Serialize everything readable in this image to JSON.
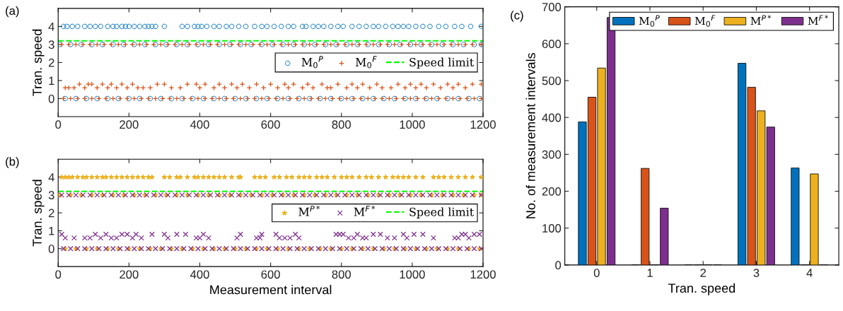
{
  "chart_data": [
    {
      "type": "scatter",
      "ylabel": "Tran. speed",
      "annotations": [
        "(a)"
      ],
      "xlim": [
        0,
        1200
      ],
      "xticks": [
        0,
        200,
        400,
        600,
        800,
        1000,
        1200
      ],
      "ylim": [
        -1,
        5
      ],
      "yticks": [
        0,
        1,
        2,
        3,
        4
      ],
      "grid": false,
      "legend": "right",
      "ref_lines": [
        {
          "axis": "y",
          "value": 3.2,
          "label": "Speed limit",
          "color": "#00ff00",
          "line_style": "dashed"
        }
      ],
      "series": [
        {
          "name": "M$_{0}$$^{P}$",
          "color": "#0072bd",
          "marker": "circle",
          "x": [
            15,
            25,
            40,
            55,
            75,
            90,
            105,
            120,
            140,
            155,
            165,
            180,
            190,
            200,
            215,
            230,
            245,
            255,
            265,
            275,
            300,
            350,
            365,
            385,
            395,
            405,
            420,
            440,
            455,
            475,
            490,
            510,
            530,
            555,
            575,
            590,
            610,
            630,
            650,
            665,
            690,
            700,
            720,
            735,
            750,
            770,
            790,
            805,
            830,
            850,
            870,
            890,
            905,
            925,
            945,
            960,
            975,
            990,
            1010,
            1030,
            1050,
            1075,
            1095,
            1120,
            1140,
            1165,
            1195,
            5,
            35,
            65,
            95,
            125,
            155,
            185,
            215,
            245,
            275,
            305,
            335,
            365,
            395,
            425,
            455,
            485,
            515,
            545,
            575,
            605,
            635,
            665,
            695,
            725,
            755,
            785,
            815,
            845,
            875,
            905,
            935,
            965,
            995,
            1025,
            1055,
            1085,
            1115,
            1145,
            1175,
            1195,
            20,
            50,
            80,
            110,
            140,
            170,
            200,
            230,
            260,
            290,
            320,
            350,
            380,
            410,
            440,
            470,
            500,
            530,
            560,
            590,
            620,
            650,
            680,
            710,
            740,
            770,
            800,
            830,
            860,
            890,
            920,
            950,
            980,
            1010,
            1040,
            1070,
            1100,
            1130,
            1160,
            1190
          ],
          "values": [
            4,
            4,
            4,
            4,
            4,
            4,
            4,
            4,
            4,
            4,
            4,
            4,
            4,
            4,
            4,
            4,
            4,
            4,
            4,
            4,
            4,
            4,
            4,
            4,
            4,
            4,
            4,
            4,
            4,
            4,
            4,
            4,
            4,
            4,
            4,
            4,
            4,
            4,
            4,
            4,
            4,
            4,
            4,
            4,
            4,
            4,
            4,
            4,
            4,
            4,
            4,
            4,
            4,
            4,
            4,
            4,
            4,
            4,
            4,
            4,
            4,
            4,
            4,
            4,
            4,
            4,
            4,
            3,
            3,
            3,
            3,
            3,
            3,
            3,
            3,
            3,
            3,
            3,
            3,
            3,
            3,
            3,
            3,
            3,
            3,
            3,
            3,
            3,
            3,
            3,
            3,
            3,
            3,
            3,
            3,
            3,
            3,
            3,
            3,
            3,
            3,
            3,
            3,
            3,
            3,
            3,
            3,
            3,
            0,
            0,
            0,
            0,
            0,
            0,
            0,
            0,
            0,
            0,
            0,
            0,
            0,
            0,
            0,
            0,
            0,
            0,
            0,
            0,
            0,
            0,
            0,
            0,
            0,
            0,
            0,
            0,
            0,
            0,
            0,
            0,
            0,
            0,
            0,
            0,
            0,
            0,
            0,
            0
          ]
        },
        {
          "name": "M$_{0}$$^{F}$",
          "color": "#d95319",
          "marker": "plus",
          "x": [
            10,
            30,
            50,
            70,
            90,
            110,
            130,
            150,
            170,
            190,
            210,
            230,
            250,
            270,
            290,
            310,
            330,
            350,
            370,
            390,
            410,
            430,
            450,
            470,
            490,
            510,
            530,
            550,
            570,
            590,
            610,
            630,
            650,
            670,
            690,
            710,
            730,
            750,
            770,
            790,
            810,
            830,
            850,
            870,
            890,
            910,
            930,
            950,
            970,
            990,
            1010,
            1030,
            1050,
            1070,
            1090,
            1110,
            1130,
            1150,
            1170,
            1195,
            15,
            35,
            55,
            75,
            95,
            115,
            135,
            155,
            175,
            195,
            215,
            235,
            255,
            275,
            295,
            315,
            335,
            355,
            375,
            395,
            415,
            435,
            455,
            475,
            495,
            515,
            535,
            555,
            575,
            595,
            615,
            635,
            655,
            675,
            695,
            715,
            735,
            755,
            775,
            795,
            815,
            835,
            855,
            875,
            895,
            915,
            935,
            955,
            975,
            995,
            1015,
            1035,
            1055,
            1075,
            1095,
            1115,
            1135,
            1155,
            1175,
            1195,
            20,
            30,
            45,
            60,
            75,
            85,
            95,
            110,
            125,
            140,
            150,
            165,
            180,
            195,
            210,
            225,
            240,
            260,
            280,
            300,
            320,
            345,
            365,
            390,
            400,
            415,
            440,
            455,
            470,
            490,
            505,
            520,
            540,
            560,
            580,
            600,
            620,
            640,
            650,
            665,
            690,
            705,
            720,
            745,
            760,
            770,
            790,
            815,
            830,
            845,
            860,
            880,
            900,
            915,
            940,
            960,
            980,
            995,
            1010,
            1025,
            1040,
            1060,
            1080,
            1100,
            1115,
            1130,
            1150,
            1170,
            1195
          ],
          "values": [
            3,
            3,
            3,
            3,
            3,
            3,
            3,
            3,
            3,
            3,
            3,
            3,
            3,
            3,
            3,
            3,
            3,
            3,
            3,
            3,
            3,
            3,
            3,
            3,
            3,
            3,
            3,
            3,
            3,
            3,
            3,
            3,
            3,
            3,
            3,
            3,
            3,
            3,
            3,
            3,
            3,
            3,
            3,
            3,
            3,
            3,
            3,
            3,
            3,
            3,
            3,
            3,
            3,
            3,
            3,
            3,
            3,
            3,
            3,
            3,
            0,
            0,
            0,
            0,
            0,
            0,
            0,
            0,
            0,
            0,
            0,
            0,
            0,
            0,
            0,
            0,
            0,
            0,
            0,
            0,
            0,
            0,
            0,
            0,
            0,
            0,
            0,
            0,
            0,
            0,
            0,
            0,
            0,
            0,
            0,
            0,
            0,
            0,
            0,
            0,
            0,
            0,
            0,
            0,
            0,
            0,
            0,
            0,
            0,
            0,
            0,
            0,
            0,
            0,
            0,
            0,
            0,
            0,
            0,
            0,
            0.6,
            0.6,
            0.6,
            0.8,
            0.6,
            0.8,
            0.8,
            0.6,
            0.8,
            0.6,
            0.8,
            0.6,
            0.8,
            0.6,
            0.8,
            0.6,
            0.6,
            0.6,
            0.8,
            0.8,
            0.6,
            0.6,
            0.8,
            0.8,
            0.6,
            0.8,
            0.6,
            0.8,
            0.6,
            0.8,
            0.6,
            0.8,
            0.6,
            0.8,
            0.6,
            0.8,
            0.6,
            0.8,
            0.6,
            0.8,
            0.6,
            0.8,
            0.6,
            0.8,
            0.6,
            0.6,
            0.8,
            0.6,
            0.8,
            0.6,
            0.8,
            0.6,
            0.8,
            0.6,
            0.6,
            0.8,
            0.6,
            0.8,
            0.6,
            0.8,
            0.6,
            0.8,
            0.6,
            0.8,
            0.6,
            0.8,
            0.6,
            0.8,
            0.8
          ]
        }
      ]
    },
    {
      "type": "scatter",
      "xlabel": "Measurement interval",
      "ylabel": "Tran. speed",
      "annotations": [
        "(b)"
      ],
      "xlim": [
        0,
        1200
      ],
      "xticks": [
        0,
        200,
        400,
        600,
        800,
        1000,
        1200
      ],
      "ylim": [
        -1,
        5
      ],
      "yticks": [
        0,
        1,
        2,
        3,
        4
      ],
      "grid": false,
      "legend": "right",
      "ref_lines": [
        {
          "axis": "y",
          "value": 3.2,
          "label": "Speed limit",
          "color": "#00ff00",
          "line_style": "dashed"
        }
      ],
      "series": [
        {
          "name": "M$^{P*}$",
          "color": "#edb120",
          "marker": "star",
          "x": [
            10,
            20,
            30,
            40,
            55,
            70,
            80,
            95,
            110,
            125,
            135,
            150,
            165,
            180,
            195,
            210,
            225,
            240,
            255,
            265,
            300,
            315,
            335,
            345,
            365,
            385,
            395,
            410,
            425,
            440,
            455,
            470,
            490,
            510,
            515,
            555,
            570,
            585,
            610,
            625,
            645,
            660,
            680,
            695,
            710,
            730,
            745,
            760,
            780,
            800,
            815,
            830,
            850,
            870,
            885,
            905,
            925,
            945,
            960,
            975,
            990,
            1010,
            1030,
            1060,
            1075,
            1090,
            1110,
            1130,
            1150,
            1170,
            1195,
            5,
            35,
            65,
            95,
            125,
            155,
            185,
            215,
            245,
            275,
            305,
            335,
            365,
            395,
            425,
            455,
            485,
            515,
            545,
            575,
            605,
            635,
            665,
            695,
            725,
            755,
            785,
            815,
            845,
            875,
            905,
            935,
            965,
            995,
            1025,
            1055,
            1085,
            1115,
            1145,
            1175,
            1195,
            20,
            50,
            80,
            110,
            140,
            170,
            200,
            230,
            260,
            290,
            320,
            350,
            380,
            410,
            440,
            470,
            500,
            530,
            560,
            590,
            620,
            650,
            680,
            710,
            740,
            770,
            800,
            830,
            860,
            890,
            920,
            950,
            980,
            1010,
            1040,
            1070,
            1100,
            1130,
            1160,
            1190
          ],
          "values": [
            4,
            4,
            4,
            4,
            4,
            4,
            4,
            4,
            4,
            4,
            4,
            4,
            4,
            4,
            4,
            4,
            4,
            4,
            4,
            4,
            4,
            4,
            4,
            4,
            4,
            4,
            4,
            4,
            4,
            4,
            4,
            4,
            4,
            4,
            4,
            4,
            4,
            4,
            4,
            4,
            4,
            4,
            4,
            4,
            4,
            4,
            4,
            4,
            4,
            4,
            4,
            4,
            4,
            4,
            4,
            4,
            4,
            4,
            4,
            4,
            4,
            4,
            4,
            4,
            4,
            4,
            4,
            4,
            4,
            4,
            4,
            3,
            3,
            3,
            3,
            3,
            3,
            3,
            3,
            3,
            3,
            3,
            3,
            3,
            3,
            3,
            3,
            3,
            3,
            3,
            3,
            3,
            3,
            3,
            3,
            3,
            3,
            3,
            3,
            3,
            3,
            3,
            3,
            3,
            3,
            3,
            3,
            3,
            3,
            3,
            3,
            3,
            0,
            0,
            0,
            0,
            0,
            0,
            0,
            0,
            0,
            0,
            0,
            0,
            0,
            0,
            0,
            0,
            0,
            0,
            0,
            0,
            0,
            0,
            0,
            0,
            0,
            0,
            0,
            0,
            0,
            0,
            0,
            0,
            0,
            0,
            0,
            0,
            0,
            0,
            0,
            0
          ]
        },
        {
          "name": "M$^{F*}$",
          "color": "#7e2f8e",
          "marker": "cross",
          "x": [
            10,
            30,
            50,
            70,
            90,
            110,
            130,
            150,
            170,
            190,
            210,
            230,
            250,
            270,
            290,
            310,
            330,
            350,
            370,
            390,
            410,
            430,
            450,
            470,
            490,
            510,
            530,
            550,
            570,
            590,
            610,
            630,
            650,
            670,
            690,
            710,
            730,
            750,
            770,
            790,
            810,
            830,
            850,
            870,
            890,
            910,
            930,
            950,
            970,
            990,
            1010,
            1030,
            1050,
            1070,
            1090,
            1110,
            1130,
            1150,
            1170,
            1195,
            15,
            35,
            55,
            75,
            95,
            115,
            135,
            155,
            175,
            195,
            215,
            235,
            255,
            275,
            295,
            315,
            335,
            355,
            375,
            395,
            415,
            435,
            455,
            475,
            495,
            515,
            535,
            555,
            575,
            595,
            615,
            635,
            655,
            675,
            695,
            715,
            735,
            755,
            775,
            795,
            815,
            835,
            855,
            875,
            895,
            915,
            935,
            955,
            975,
            995,
            1015,
            1035,
            1055,
            1075,
            1095,
            1115,
            1135,
            1155,
            1175,
            1195,
            10,
            20,
            45,
            75,
            90,
            105,
            120,
            135,
            150,
            165,
            180,
            195,
            210,
            220,
            235,
            265,
            300,
            310,
            335,
            360,
            390,
            400,
            410,
            425,
            505,
            515,
            560,
            570,
            575,
            615,
            625,
            640,
            655,
            670,
            680,
            785,
            795,
            805,
            820,
            835,
            845,
            860,
            870,
            890,
            910,
            930,
            950,
            975,
            985,
            1005,
            1030,
            1060,
            1120,
            1130,
            1140,
            1150,
            1160,
            1175,
            1190
          ],
          "values": [
            3,
            3,
            3,
            3,
            3,
            3,
            3,
            3,
            3,
            3,
            3,
            3,
            3,
            3,
            3,
            3,
            3,
            3,
            3,
            3,
            3,
            3,
            3,
            3,
            3,
            3,
            3,
            3,
            3,
            3,
            3,
            3,
            3,
            3,
            3,
            3,
            3,
            3,
            3,
            3,
            3,
            3,
            3,
            3,
            3,
            3,
            3,
            3,
            3,
            3,
            3,
            3,
            3,
            3,
            3,
            3,
            3,
            3,
            3,
            3,
            0,
            0,
            0,
            0,
            0,
            0,
            0,
            0,
            0,
            0,
            0,
            0,
            0,
            0,
            0,
            0,
            0,
            0,
            0,
            0,
            0,
            0,
            0,
            0,
            0,
            0,
            0,
            0,
            0,
            0,
            0,
            0,
            0,
            0,
            0,
            0,
            0,
            0,
            0,
            0,
            0,
            0,
            0,
            0,
            0,
            0,
            0,
            0,
            0,
            0,
            0,
            0,
            0,
            0,
            0,
            0,
            0,
            0,
            0,
            0,
            0.8,
            0.6,
            0.6,
            0.6,
            0.6,
            0.8,
            0.6,
            0.8,
            0.6,
            0.6,
            0.8,
            0.8,
            0.6,
            0.8,
            0.6,
            0.8,
            0.8,
            0.6,
            0.8,
            0.8,
            0.6,
            0.6,
            0.8,
            0.6,
            0.6,
            0.8,
            0.6,
            0.6,
            0.8,
            0.8,
            0.6,
            0.6,
            0.6,
            0.8,
            0.6,
            0.8,
            0.8,
            0.8,
            0.6,
            0.6,
            0.8,
            0.6,
            0.6,
            0.8,
            0.8,
            0.6,
            0.6,
            0.8,
            0.6,
            0.8,
            0.8,
            0.6,
            0.6,
            0.6,
            0.8,
            0.8,
            0.6,
            0.8,
            0.8
          ]
        }
      ]
    },
    {
      "type": "bar",
      "xlabel": "Tran. speed",
      "ylabel": "No. of measurement intervals",
      "annotations": [
        "(c)"
      ],
      "categories": [
        "0",
        "1",
        "2",
        "3",
        "4"
      ],
      "ylim": [
        0,
        700
      ],
      "yticks": [
        0,
        100,
        200,
        300,
        400,
        500,
        600,
        700
      ],
      "grid": false,
      "legend": "top right",
      "series": [
        {
          "name": "M$_{0}$$^{P}$",
          "color": "#0072bd",
          "values": [
            388,
            0,
            0,
            547,
            263
          ]
        },
        {
          "name": "M$_{0}$$^{F}$",
          "color": "#d95319",
          "values": [
            455,
            262,
            0,
            482,
            0
          ]
        },
        {
          "name": "M$^{P*}$",
          "color": "#edb120",
          "values": [
            534,
            0,
            0,
            418,
            247
          ]
        },
        {
          "name": "M$^{F*}$",
          "color": "#7e2f8e",
          "values": [
            671,
            154,
            0,
            374,
            0
          ]
        }
      ]
    }
  ]
}
